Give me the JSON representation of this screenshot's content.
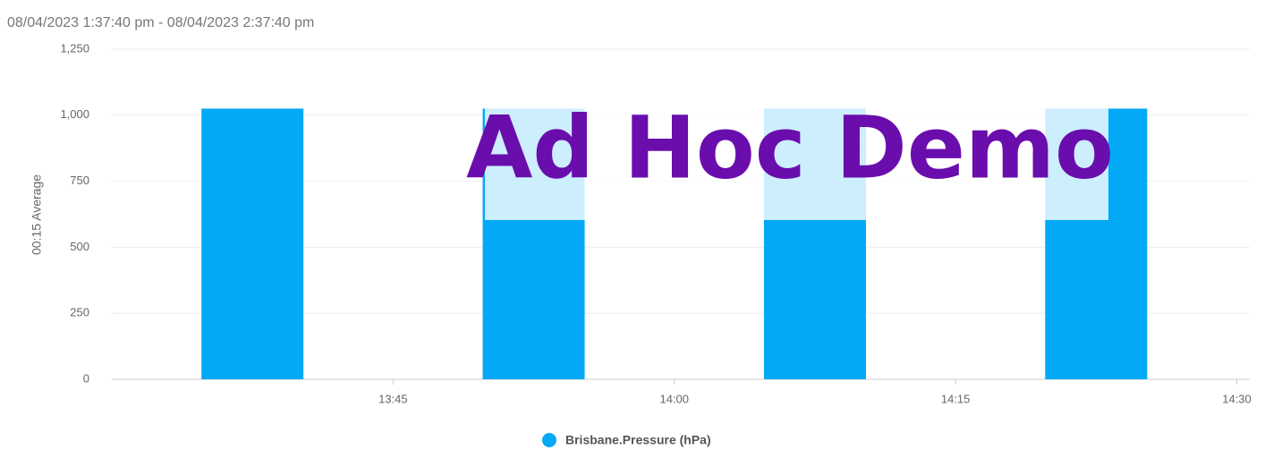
{
  "chart_data": {
    "type": "bar",
    "title": "08/04/2023 1:37:40 pm - 08/04/2023 2:37:40 pm",
    "ylabel": "00:15 Average",
    "watermark": "Ad Hoc Demo",
    "x": [
      817.5,
      832.5,
      847.5,
      862.5
    ],
    "series": [
      {
        "name": "Brisbane.Pressure (hPa)",
        "color": "#03a9f4",
        "values": [
          1025,
          1025,
          1025,
          1025
        ]
      }
    ],
    "xlim": [
      810,
      870.5
    ],
    "xticks": [
      {
        "value": 825,
        "label": "13:45"
      },
      {
        "value": 840,
        "label": "14:00"
      },
      {
        "value": 855,
        "label": "14:15"
      },
      {
        "value": 870,
        "label": "14:30"
      }
    ],
    "ylim": [
      0,
      1250
    ],
    "yticks": [
      0,
      250,
      500,
      750,
      {
        "value": 1000,
        "label": "1,000"
      },
      {
        "value": 1250,
        "label": "1,250"
      }
    ],
    "grid": true,
    "legend": "bottom"
  }
}
